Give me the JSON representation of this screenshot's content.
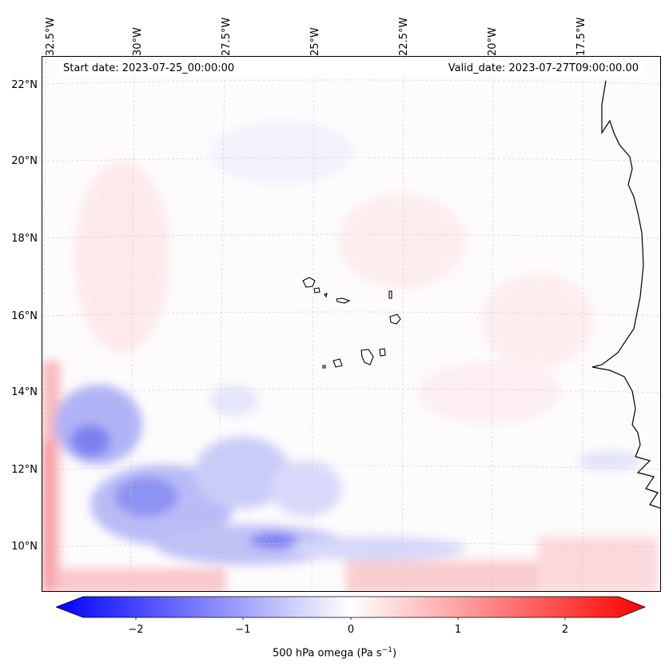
{
  "header": {
    "start_date": "Start date: 2023-07-25_00:00:00",
    "valid_date": "Valid_date: 2023-07-27T09:00:00.00"
  },
  "map": {
    "lon_labels": [
      "32.5°W",
      "30°W",
      "27.5°W",
      "25°W",
      "22.5°W",
      "20°W",
      "17.5°W"
    ],
    "lat_labels": [
      "22°N",
      "20°N",
      "18°N",
      "16°N",
      "14°N",
      "12°N",
      "10°N"
    ]
  },
  "colorbar": {
    "ticks": [
      "−2",
      "−1",
      "0",
      "1",
      "2"
    ],
    "label_text": "500 hPa omega (Pa s",
    "label_sup": "−1",
    "label_close": ")",
    "colors": {
      "negative": "#0000ff",
      "neutral": "#ffffff",
      "positive": "#ff0000"
    },
    "range": [
      -2.75,
      2.75
    ]
  }
}
